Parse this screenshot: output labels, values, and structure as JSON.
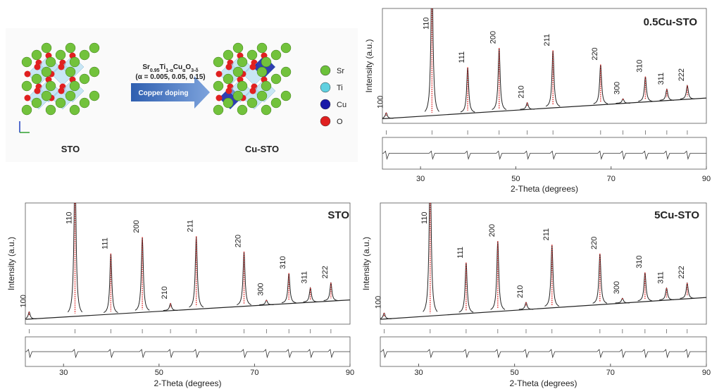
{
  "schematic": {
    "host_label": "STO",
    "doped_label": "Cu-STO",
    "formula_parts": [
      "Sr",
      "0.95",
      "Ti",
      "1-α",
      "Cu",
      "α",
      "O",
      "3-δ"
    ],
    "composition": "(α = 0.005, 0.05, 0.15)",
    "arrow_label": "Copper doping",
    "legend": [
      "Sr",
      "Ti",
      "Cu",
      "O"
    ]
  },
  "chart_data": [
    {
      "type": "xrd",
      "title": "0.5Cu-STO",
      "x_label": "2-Theta (degrees)",
      "y_label": "Intensity (a.u.)",
      "xlim": [
        22,
        90
      ],
      "xticks": [
        30,
        50,
        70,
        90
      ],
      "ylim": [
        0,
        100
      ],
      "background": [
        4,
        22
      ],
      "peaks": {
        "x": [
          22.8,
          32.4,
          39.9,
          46.5,
          52.4,
          57.8,
          67.8,
          72.5,
          77.2,
          81.7,
          86.0
        ],
        "labels": [
          "100",
          "110",
          "111",
          "200",
          "210",
          "211",
          "220",
          "300",
          "310",
          "311",
          "222"
        ],
        "values": [
          5,
          130,
          40,
          55,
          6,
          50,
          35,
          4,
          22,
          10,
          12
        ]
      }
    },
    {
      "type": "xrd",
      "title": "STO",
      "x_label": "2-Theta (degrees)",
      "y_label": "Intensity (a.u.)",
      "xlim": [
        22,
        90
      ],
      "xticks": [
        30,
        50,
        70,
        90
      ],
      "ylim": [
        0,
        100
      ],
      "background": [
        4,
        20
      ],
      "peaks": {
        "x": [
          22.8,
          32.4,
          39.9,
          46.5,
          52.4,
          57.8,
          67.8,
          72.5,
          77.2,
          81.7,
          86.0
        ],
        "labels": [
          "100",
          "110",
          "111",
          "200",
          "210",
          "211",
          "220",
          "300",
          "310",
          "311",
          "222"
        ],
        "values": [
          6,
          130,
          50,
          62,
          6,
          60,
          45,
          4,
          25,
          12,
          15
        ]
      }
    },
    {
      "type": "xrd",
      "title": "5Cu-STO",
      "x_label": "2-Theta (degrees)",
      "y_label": "Intensity (a.u.)",
      "xlim": [
        22,
        90
      ],
      "xticks": [
        30,
        50,
        70,
        90
      ],
      "ylim": [
        0,
        100
      ],
      "background": [
        4,
        22
      ],
      "peaks": {
        "x": [
          22.8,
          32.4,
          39.9,
          46.5,
          52.4,
          57.8,
          67.8,
          72.5,
          77.2,
          81.7,
          86.0
        ],
        "labels": [
          "100",
          "110",
          "111",
          "200",
          "210",
          "211",
          "220",
          "300",
          "310",
          "311",
          "222"
        ],
        "values": [
          5,
          130,
          42,
          58,
          6,
          52,
          42,
          4,
          24,
          10,
          13
        ]
      }
    }
  ]
}
